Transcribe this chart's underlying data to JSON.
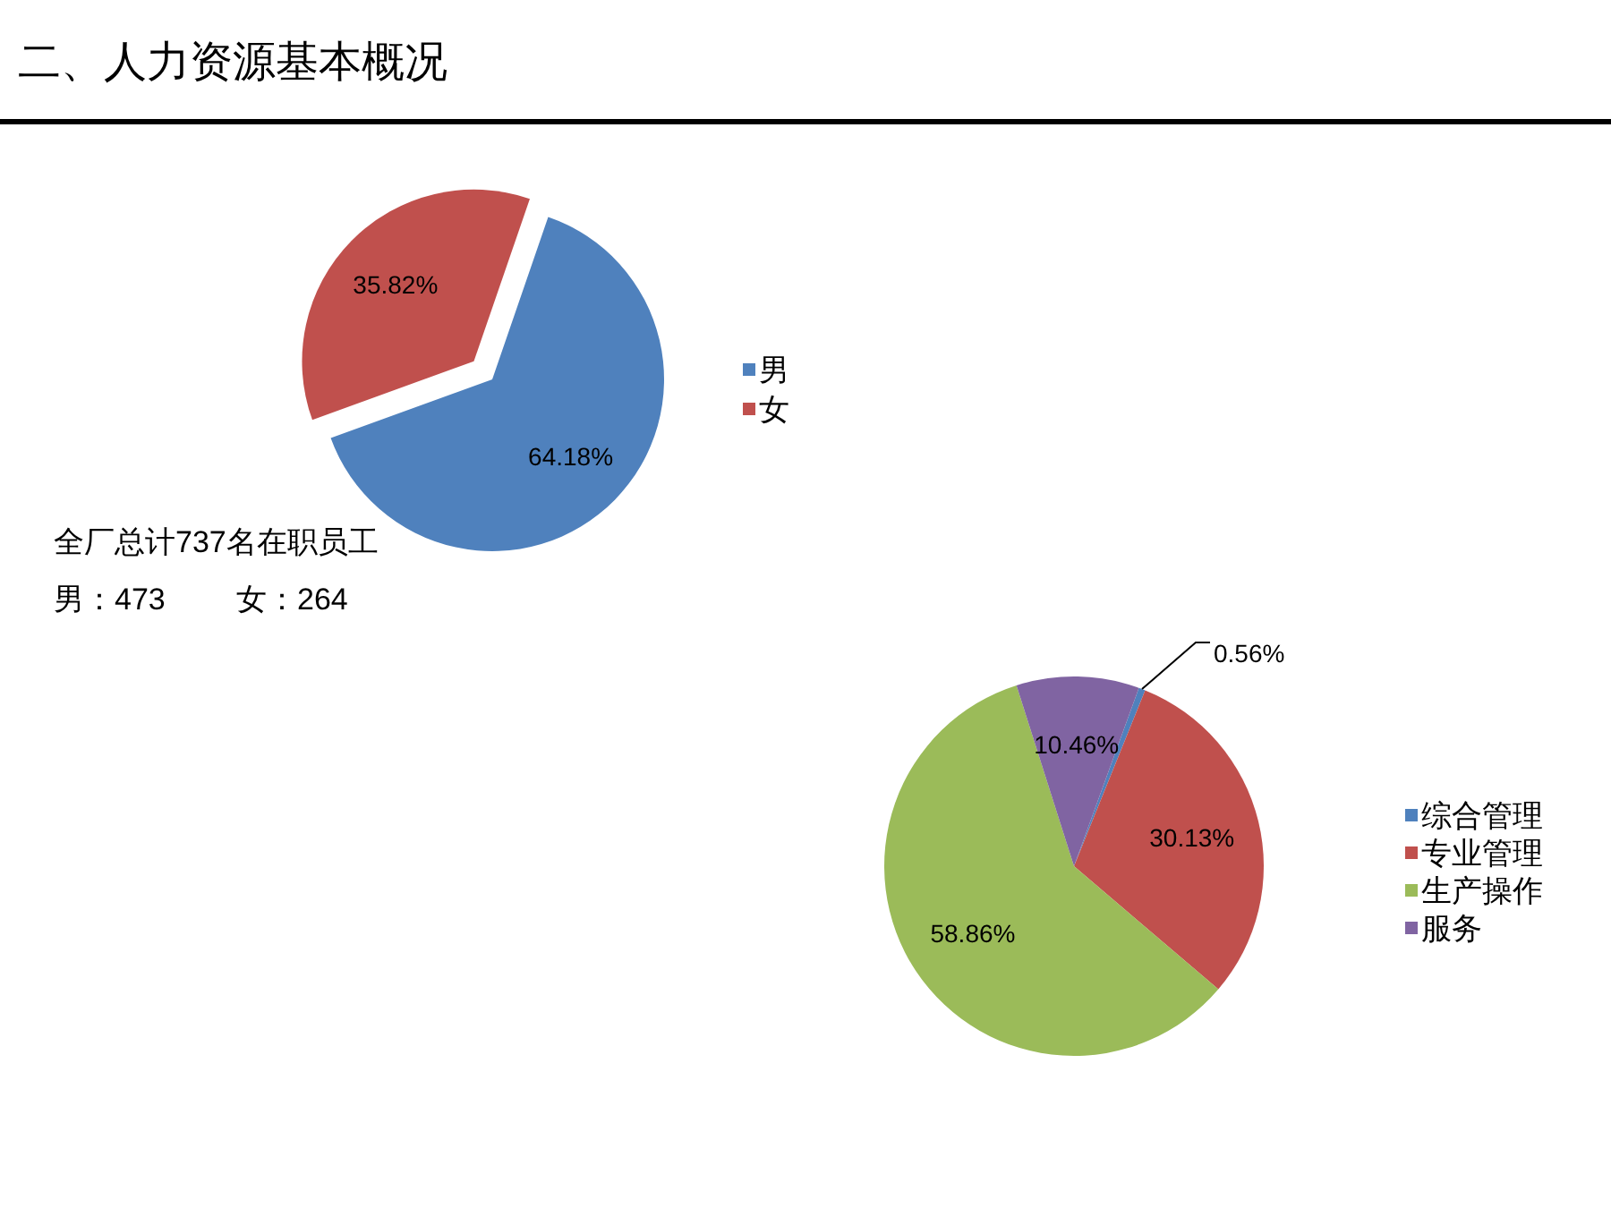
{
  "chart_data": [
    {
      "type": "pie",
      "title": "二、人力资源基本概况",
      "categories": [
        "男",
        "女"
      ],
      "values": [
        64.18,
        35.82
      ],
      "colors": [
        "#4f81bd",
        "#c0504d"
      ],
      "value_labels": [
        "64.18%",
        "35.82%"
      ],
      "legend": "right",
      "annotations": [
        "全厂总计737名在职员工",
        "男：473",
        "女：264"
      ]
    },
    {
      "type": "pie",
      "categories": [
        "综合管理",
        "专业管理",
        "生产操作",
        "服务"
      ],
      "values": [
        0.56,
        30.13,
        58.86,
        10.46
      ],
      "colors": [
        "#4f81bd",
        "#c0504d",
        "#9bbb59",
        "#8064a2"
      ],
      "value_labels": [
        "0.56%",
        "30.13%",
        "58.86%",
        "10.46%"
      ],
      "legend": "right"
    }
  ]
}
